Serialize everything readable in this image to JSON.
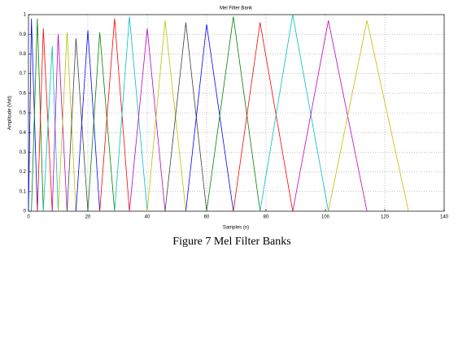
{
  "chart_data": {
    "type": "line",
    "title": "Mel Filter Bank",
    "xlabel": "Samples (n)",
    "ylabel": "Amplitude (Volt)",
    "caption": "Figure 7  Mel Filter Banks",
    "xlim": [
      0,
      140
    ],
    "xticks": [
      0,
      20,
      40,
      60,
      80,
      100,
      120,
      140
    ],
    "ylim": [
      0,
      1
    ],
    "yticks": [
      0,
      0.1,
      0.2,
      0.3,
      0.4,
      0.5,
      0.6,
      0.7,
      0.8,
      0.9,
      1
    ],
    "grid": true,
    "series": [
      {
        "color": "#0000ff",
        "x": [
          0,
          1,
          3
        ],
        "values": [
          0,
          0.98,
          0
        ]
      },
      {
        "color": "#008000",
        "x": [
          1,
          3,
          5
        ],
        "values": [
          0,
          0.98,
          0
        ]
      },
      {
        "color": "#ff0000",
        "x": [
          3,
          5,
          8
        ],
        "values": [
          0,
          0.93,
          0
        ]
      },
      {
        "color": "#00bfbf",
        "x": [
          5,
          8,
          10
        ],
        "values": [
          0,
          0.84,
          0
        ]
      },
      {
        "color": "#bf00bf",
        "x": [
          8,
          10,
          13
        ],
        "values": [
          0,
          0.9,
          0
        ]
      },
      {
        "color": "#bfbf00",
        "x": [
          10,
          13,
          16
        ],
        "values": [
          0,
          0.91,
          0
        ]
      },
      {
        "color": "#404040",
        "x": [
          13,
          16,
          20
        ],
        "values": [
          0,
          0.88,
          0
        ]
      },
      {
        "color": "#0000ff",
        "x": [
          16,
          20,
          24
        ],
        "values": [
          0,
          0.92,
          0
        ]
      },
      {
        "color": "#008000",
        "x": [
          20,
          24,
          29
        ],
        "values": [
          0,
          0.91,
          0
        ]
      },
      {
        "color": "#ff0000",
        "x": [
          24,
          29,
          34
        ],
        "values": [
          0,
          0.98,
          0
        ]
      },
      {
        "color": "#00bfbf",
        "x": [
          29,
          34,
          40
        ],
        "values": [
          0,
          0.99,
          0
        ]
      },
      {
        "color": "#bf00bf",
        "x": [
          34,
          40,
          46
        ],
        "values": [
          0,
          0.93,
          0
        ]
      },
      {
        "color": "#bfbf00",
        "x": [
          40,
          46,
          53
        ],
        "values": [
          0,
          0.97,
          0
        ]
      },
      {
        "color": "#404040",
        "x": [
          46,
          53,
          60
        ],
        "values": [
          0,
          0.96,
          0
        ]
      },
      {
        "color": "#0000ff",
        "x": [
          53,
          60,
          69
        ],
        "values": [
          0,
          0.95,
          0
        ]
      },
      {
        "color": "#008000",
        "x": [
          60,
          69,
          78
        ],
        "values": [
          0,
          0.99,
          0
        ]
      },
      {
        "color": "#ff0000",
        "x": [
          69,
          78,
          89
        ],
        "values": [
          0,
          0.96,
          0
        ]
      },
      {
        "color": "#00bfbf",
        "x": [
          78,
          89,
          101
        ],
        "values": [
          0,
          1.0,
          0
        ]
      },
      {
        "color": "#bf00bf",
        "x": [
          89,
          101,
          114
        ],
        "values": [
          0,
          0.97,
          0
        ]
      },
      {
        "color": "#bfbf00",
        "x": [
          101,
          114,
          128
        ],
        "values": [
          0,
          0.97,
          0
        ]
      }
    ]
  }
}
